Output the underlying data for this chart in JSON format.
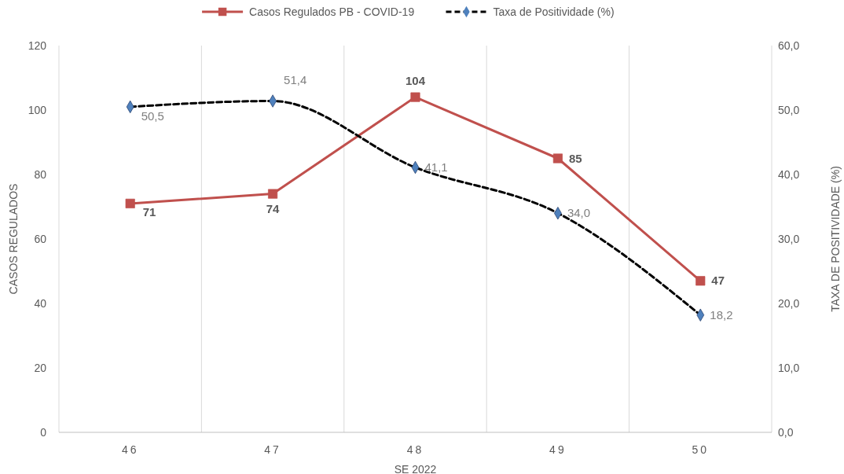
{
  "chart_data": {
    "type": "line",
    "categories": [
      "46",
      "47",
      "48",
      "49",
      "50"
    ],
    "xlabel": "SE 2022",
    "ylabel": "CASOS REGULADOS",
    "y2label": "TAXA DE POSITIVIDADE (%)",
    "series": [
      {
        "name": "Casos Regulados PB - COVID-19",
        "color": "#c0504d",
        "values": [
          71,
          74,
          104,
          85,
          47
        ],
        "value_labels": [
          "71",
          "74",
          "104",
          "85",
          "47"
        ],
        "marker": "square",
        "line_style": "solid"
      },
      {
        "name": "Taxa de Positividade (%)",
        "color": "#000000",
        "values": [
          50.5,
          51.4,
          41.1,
          34.0,
          18.2
        ],
        "value_labels": [
          "50,5",
          "51,4",
          "41,1",
          "34,0",
          "18,2"
        ],
        "axis": "y2",
        "marker": "diamond",
        "line_style": "dashed"
      }
    ],
    "ylim": [
      0,
      120
    ],
    "yticks": [
      0,
      20,
      40,
      60,
      80,
      100,
      120
    ],
    "y2lim": [
      0,
      60
    ],
    "y2ticks": [
      {
        "value": 0,
        "label": "0,0"
      },
      {
        "value": 10,
        "label": "10,0"
      },
      {
        "value": 20,
        "label": "20,0"
      },
      {
        "value": 30,
        "label": "30,0"
      },
      {
        "value": 40,
        "label": "40,0"
      },
      {
        "value": 50,
        "label": "50,0"
      },
      {
        "value": 60,
        "label": "60,0"
      }
    ],
    "grid": "x",
    "legend": "top"
  }
}
